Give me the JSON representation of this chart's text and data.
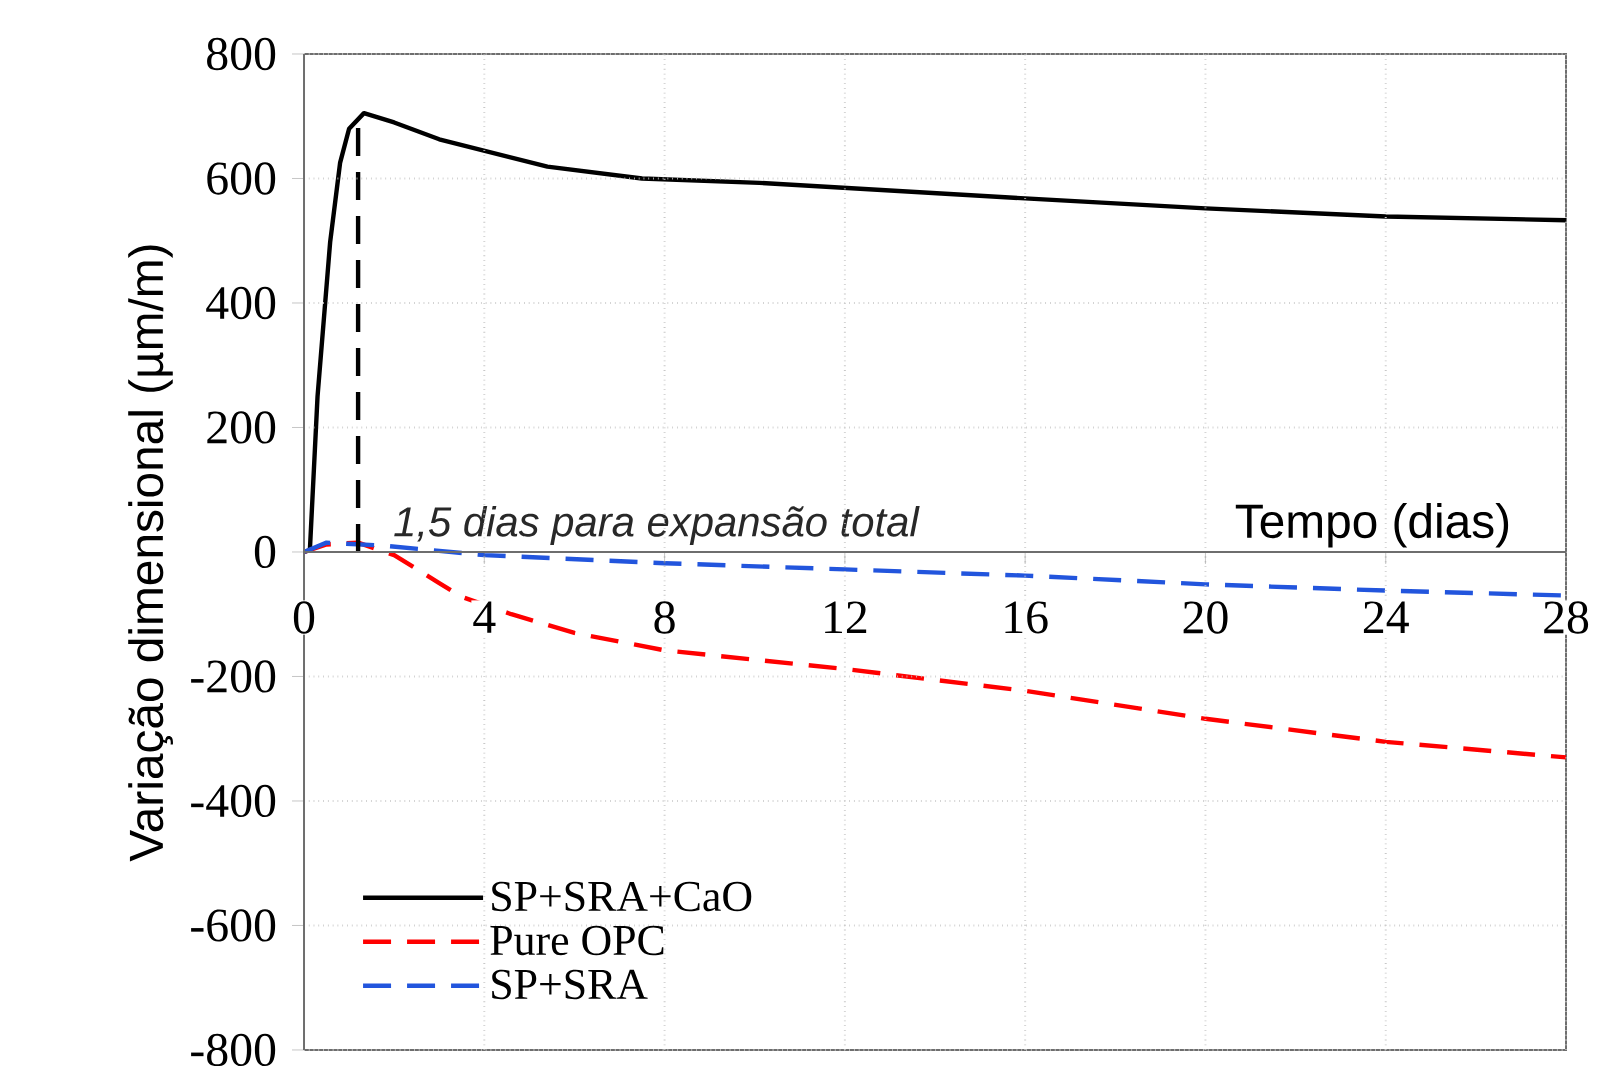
{
  "chart_data": {
    "type": "line",
    "xlabel": "Tempo (dias)",
    "ylabel": "Variação dimensional (µm/m)",
    "xlim": [
      0,
      28
    ],
    "ylim": [
      -800,
      800
    ],
    "xticks": [
      0,
      4,
      8,
      12,
      16,
      20,
      24,
      28
    ],
    "yticks": [
      -800,
      -600,
      -400,
      -200,
      0,
      200,
      400,
      600,
      800
    ],
    "grid": true,
    "legend": "bottom left",
    "marker": "none",
    "annotations": [
      "1,5 dias para expansão total"
    ],
    "series": [
      {
        "name": "SP+SRA+CaO",
        "color": "#000000",
        "line_style": "solid",
        "x": [
          0,
          0.13,
          0.3,
          0.58,
          0.8,
          1.0,
          1.33,
          2.0,
          3.0,
          5.4,
          7.5,
          10.1,
          16,
          20,
          24,
          28
        ],
        "values": [
          0,
          3,
          250,
          498,
          625,
          680,
          705,
          690,
          663,
          619,
          600,
          593,
          568,
          552,
          539,
          533
        ]
      },
      {
        "name": "Pure OPC",
        "color": "#ff0000",
        "line_style": "dashed",
        "x": [
          0,
          0.5,
          1.2,
          2,
          3,
          3.5,
          4.6,
          6,
          8,
          12,
          16,
          20,
          24,
          28
        ],
        "values": [
          0,
          12,
          15,
          -5,
          -50,
          -72,
          -100,
          -130,
          -158,
          -188,
          -223,
          -268,
          -305,
          -330
        ]
      },
      {
        "name": "SP+SRA",
        "color": "#2255dd",
        "line_style": "dashed",
        "x": [
          0,
          0.5,
          1.8,
          4,
          8,
          12,
          16,
          20,
          24,
          28
        ],
        "values": [
          0,
          15,
          10,
          -5,
          -18,
          -28,
          -38,
          -52,
          -62,
          -70
        ]
      },
      {
        "type": "line",
        "color": "#000000",
        "line_style": "dashed",
        "x": [
          1.2,
          1.2
        ],
        "values": [
          0,
          700
        ]
      }
    ]
  }
}
